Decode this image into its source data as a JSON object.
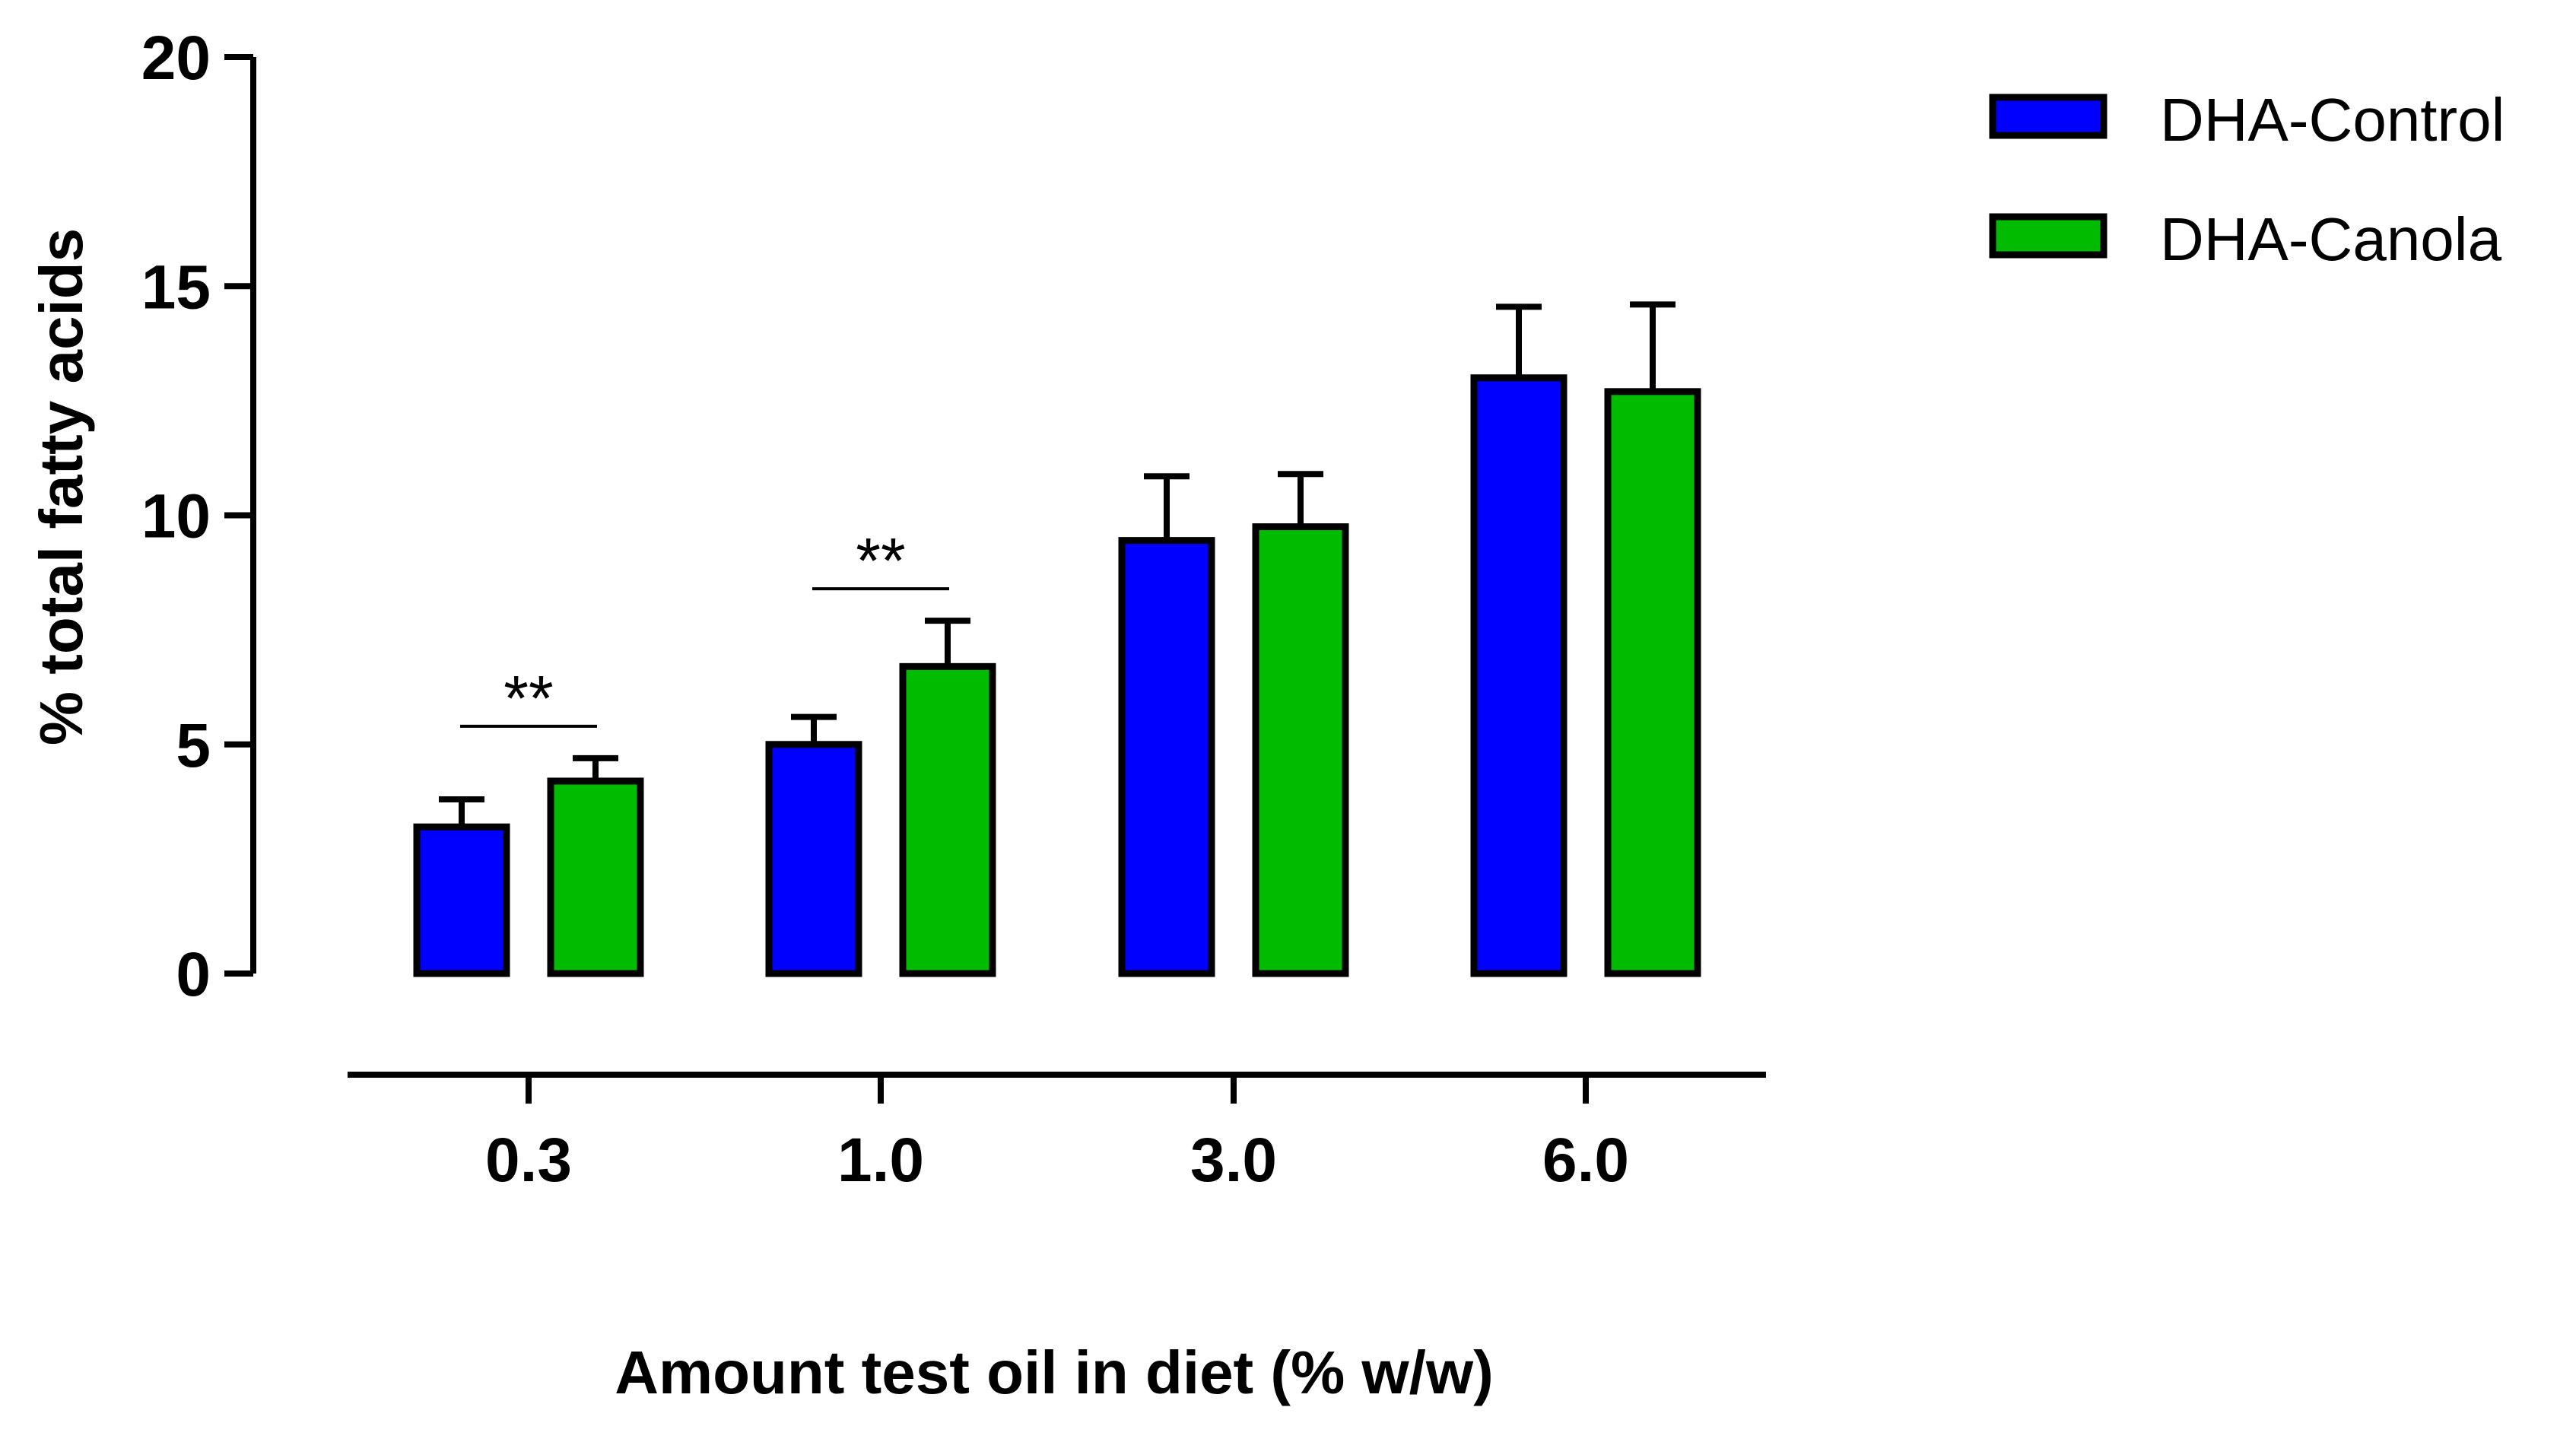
{
  "chart_data": {
    "type": "bar",
    "title": "",
    "xlabel": "Amount test oil in diet (% w/w)",
    "ylabel": "% total fatty acids",
    "ylim": [
      0,
      20
    ],
    "yticks": [
      0,
      5,
      10,
      15,
      20
    ],
    "categories": [
      "0.3",
      "1.0",
      "3.0",
      "6.0"
    ],
    "series": [
      {
        "name": "DHA-Control",
        "color": "#0000ff",
        "values": [
          3.2,
          5.0,
          9.45,
          13.0
        ],
        "errors": [
          0.6,
          0.6,
          1.4,
          1.55
        ]
      },
      {
        "name": "DHA-Canola",
        "color": "#00bb00",
        "values": [
          4.2,
          6.7,
          9.75,
          12.7
        ],
        "errors": [
          0.5,
          1.0,
          1.15,
          1.9
        ]
      }
    ],
    "significance": [
      {
        "category": "0.3",
        "label": "**"
      },
      {
        "category": "1.0",
        "label": "**"
      }
    ],
    "legend": {
      "placement": "top-right"
    },
    "grid": false
  }
}
